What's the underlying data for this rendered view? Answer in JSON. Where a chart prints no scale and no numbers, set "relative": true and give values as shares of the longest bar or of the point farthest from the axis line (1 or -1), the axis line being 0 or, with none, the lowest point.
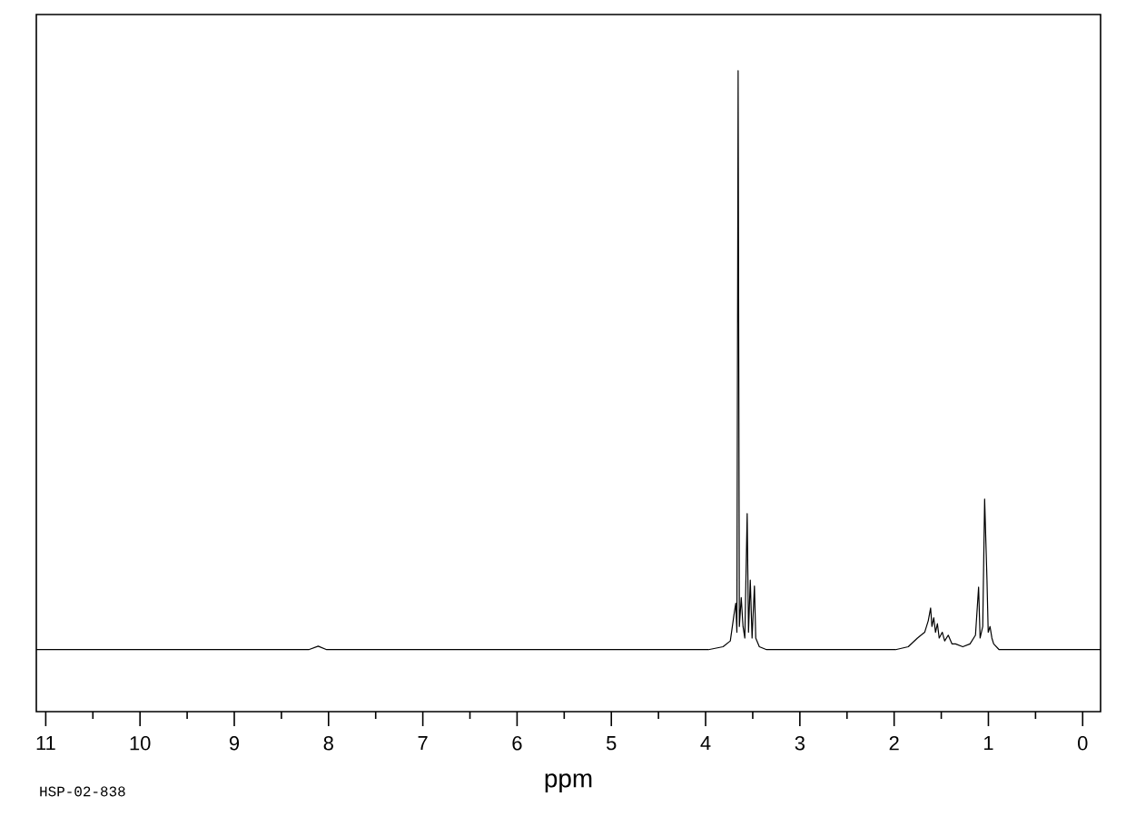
{
  "chart_data": {
    "type": "line",
    "relative": true,
    "xlabel": "ppm",
    "color": "#000000",
    "xlim": [
      11.1,
      -0.19
    ],
    "xticks": [
      11,
      10,
      9,
      8,
      7,
      6,
      5,
      4,
      3,
      2,
      1,
      0
    ],
    "annotations": [
      "HSP-02-838"
    ],
    "x": [
      11.1,
      8.21,
      8.11,
      8.02,
      3.97,
      3.815,
      3.738,
      3.699,
      3.68,
      3.668,
      3.655,
      3.642,
      3.622,
      3.603,
      3.584,
      3.559,
      3.545,
      3.526,
      3.507,
      3.482,
      3.468,
      3.43,
      3.353,
      1.985,
      1.85,
      1.753,
      1.676,
      1.638,
      1.613,
      1.599,
      1.58,
      1.561,
      1.541,
      1.522,
      1.489,
      1.464,
      1.426,
      1.387,
      1.349,
      1.272,
      1.195,
      1.137,
      1.104,
      1.088,
      1.06,
      1.04,
      1.015,
      1.002,
      0.983,
      0.963,
      0.944,
      0.886,
      -0.19
    ],
    "values": [
      0,
      0,
      0.006,
      0,
      0,
      0.005,
      0.015,
      0.06,
      0.08,
      0.03,
      1.0,
      0.04,
      0.09,
      0.04,
      0.02,
      0.235,
      0.03,
      0.12,
      0.02,
      0.11,
      0.02,
      0.005,
      0,
      0,
      0.005,
      0.02,
      0.03,
      0.05,
      0.072,
      0.04,
      0.055,
      0.03,
      0.045,
      0.02,
      0.03,
      0.015,
      0.025,
      0.01,
      0.01,
      0.005,
      0.01,
      0.025,
      0.108,
      0.02,
      0.04,
      0.26,
      0.12,
      0.03,
      0.04,
      0.02,
      0.01,
      0,
      0
    ]
  }
}
